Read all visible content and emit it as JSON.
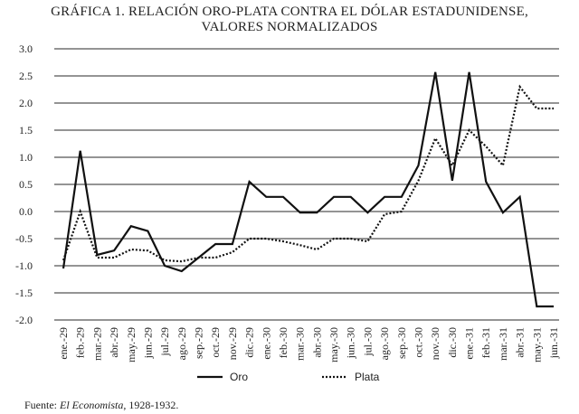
{
  "chart_data": {
    "type": "line",
    "title": "GRÁFICA 1. RELACIÓN ORO-PLATA CONTRA EL DÓLAR ESTADUNIDENSE, VALORES NORMALIZADOS",
    "title_line1": "GRÁFICA 1. RELACIÓN ORO-PLATA CONTRA EL DÓLAR ESTADUNIDENSE,",
    "title_line2": "VALORES NORMALIZADOS",
    "xlabel": "",
    "ylabel": "",
    "ylim": [
      -2.0,
      3.0
    ],
    "yticks": [
      "3.0",
      "2.5",
      "2.0",
      "1.5",
      "1.0",
      "0.5",
      "0.0",
      "-0.5",
      "-1.0",
      "-1.5",
      "-2.0"
    ],
    "grid": true,
    "legend_position": "bottom",
    "categories": [
      "ene.-29",
      "feb.-29",
      "mar.-29",
      "abr.-29",
      "may.-29",
      "jun.-29",
      "jul.-29",
      "ago.-29",
      "sep.-29",
      "oct.-29",
      "nov.-29",
      "dic.-29",
      "ene.-30",
      "feb.-30",
      "mar.-30",
      "abr.-30",
      "may.-30",
      "jun.-30",
      "jul.-30",
      "ago.-30",
      "sep.-30",
      "oct.-30",
      "nov.-30",
      "dic.-30",
      "ene.-31",
      "feb.-31",
      "mar.-31",
      "abr.-31",
      "may.-31",
      "jun.-31"
    ],
    "series": [
      {
        "name": "Oro",
        "style": "solid",
        "values": [
          -1.05,
          1.12,
          -0.8,
          -0.72,
          -0.27,
          -0.36,
          -1.0,
          -1.1,
          -0.85,
          -0.6,
          -0.6,
          0.55,
          0.27,
          0.27,
          -0.02,
          -0.02,
          0.27,
          0.27,
          -0.02,
          0.27,
          0.27,
          0.85,
          2.57,
          0.57,
          2.57,
          0.55,
          -0.02,
          0.27,
          -1.75,
          -1.75
        ]
      },
      {
        "name": "Plata",
        "style": "dotted",
        "values": [
          -0.9,
          0.0,
          -0.85,
          -0.85,
          -0.7,
          -0.72,
          -0.9,
          -0.92,
          -0.85,
          -0.85,
          -0.75,
          -0.5,
          -0.5,
          -0.55,
          -0.62,
          -0.7,
          -0.5,
          -0.5,
          -0.55,
          -0.05,
          0.0,
          0.57,
          1.35,
          0.85,
          1.5,
          1.2,
          0.85,
          2.3,
          1.9,
          1.9
        ]
      }
    ]
  },
  "legend": {
    "oro_label": "Oro",
    "plata_label": "Plata"
  },
  "source": {
    "prefix": "Fuente:",
    "publication": "El Economista",
    "suffix": ", 1928-1932."
  }
}
